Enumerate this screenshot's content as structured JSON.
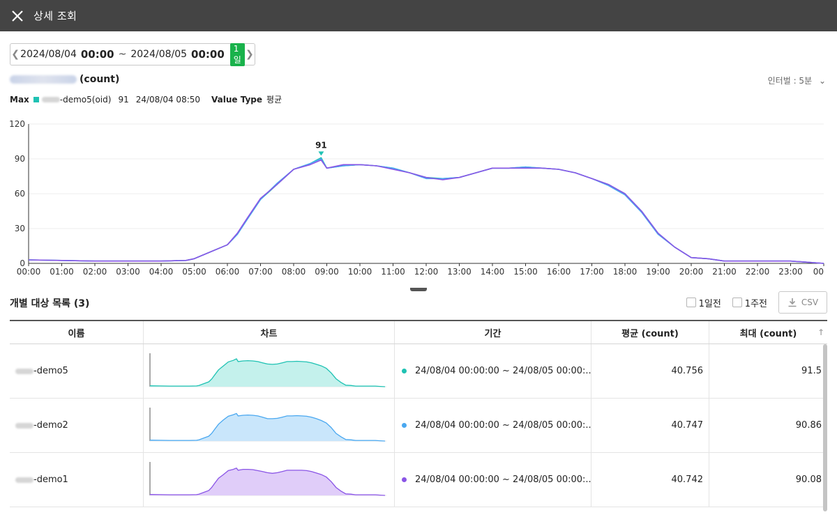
{
  "header": {
    "title": "상세 조회"
  },
  "date_range": {
    "start_date": "2024/08/04",
    "start_time": "00:00",
    "sep": "~",
    "end_date": "2024/08/05",
    "end_time": "00:00",
    "badge": "1일"
  },
  "metric": {
    "title_suffix": "(count)",
    "interval_label": "인터벌 : 5분"
  },
  "max_info": {
    "label": "Max",
    "name_suffix": "-demo5(oid)",
    "value": "91",
    "time": "24/08/04 08:50",
    "value_type_label": "Value Type",
    "value_type": "평균"
  },
  "colors": {
    "accent": "#1fc2b3",
    "green_badge": "#19b24b",
    "series_teal": "#1fc2b3",
    "series_blue": "#4aa8f0",
    "series_purple": "#8a55e6",
    "titlebar": "#444444"
  },
  "chart_data": {
    "type": "line",
    "x_ticks": [
      "00:00",
      "01:00",
      "02:00",
      "03:00",
      "04:00",
      "05:00",
      "06:00",
      "07:00",
      "08:00",
      "09:00",
      "10:00",
      "11:00",
      "12:00",
      "13:00",
      "14:00",
      "15:00",
      "16:00",
      "17:00",
      "18:00",
      "19:00",
      "20:00",
      "21:00",
      "22:00",
      "23:00",
      "00"
    ],
    "y_ticks": [
      "0",
      "30",
      "60",
      "90",
      "120"
    ],
    "ylim": [
      0,
      120
    ],
    "xlim_hours": [
      0,
      24
    ],
    "peak_label": "91",
    "peak": {
      "x": 8.83,
      "y": 91
    },
    "x": [
      0,
      1,
      2,
      3,
      4,
      4.75,
      5,
      5.5,
      6,
      6.3,
      6.6,
      7,
      7.5,
      8,
      8.5,
      8.83,
      9,
      9.5,
      10,
      10.5,
      11,
      11.5,
      12,
      12.5,
      13,
      13.5,
      14,
      14.5,
      15,
      15.5,
      16,
      16.5,
      17,
      17.5,
      18,
      18.5,
      19,
      19.5,
      20,
      20.5,
      21,
      22,
      23,
      23.5,
      24
    ],
    "series": [
      {
        "color": "#1fc2b3",
        "values": [
          3,
          2.5,
          2,
          2,
          2,
          2.5,
          4,
          10,
          16,
          25,
          38,
          55,
          68,
          81,
          86,
          91,
          82,
          84,
          85,
          84,
          82,
          78,
          74,
          73,
          74,
          78,
          82,
          82,
          83,
          82,
          81,
          78,
          73,
          68,
          60,
          45,
          26,
          14,
          5,
          4,
          2,
          2,
          2,
          1,
          0
        ]
      },
      {
        "color": "#4aa8f0",
        "values": [
          3,
          2.5,
          2,
          2,
          2,
          2.5,
          4,
          10,
          16,
          25,
          38,
          55,
          69,
          81,
          86,
          90,
          82,
          84,
          85,
          84,
          82,
          78,
          73,
          73,
          74,
          78,
          82,
          82,
          83,
          82,
          81,
          78,
          73,
          67,
          59,
          44,
          25,
          14,
          5,
          4,
          2,
          2,
          2,
          1,
          0
        ]
      },
      {
        "color": "#8a55e6",
        "values": [
          3,
          2.5,
          2,
          2,
          2,
          2.5,
          4,
          10,
          16,
          26,
          39,
          56,
          68,
          81,
          85,
          89,
          82,
          85,
          85,
          84,
          81,
          78,
          74,
          72,
          74,
          78,
          82,
          82,
          82,
          82,
          81,
          78,
          73,
          68,
          60,
          45,
          26,
          14,
          5,
          4,
          2,
          2,
          2,
          1,
          0
        ]
      }
    ]
  },
  "list": {
    "title": "개별 대상 목록 (3)",
    "check_1day": "1일전",
    "check_1week": "1주전",
    "csv_label": "CSV",
    "columns": {
      "name": "이름",
      "chart": "차트",
      "period": "기간",
      "avg": "평균 (count)",
      "max": "최대 (count)"
    },
    "rows": [
      {
        "name_suffix": "-demo5",
        "period": "24/08/04 00:00:00 ~ 24/08/05 00:00:...",
        "avg": "40.756",
        "max": "91.5",
        "color": "#1fc2b3",
        "fill": "#c4f1ec"
      },
      {
        "name_suffix": "-demo2",
        "period": "24/08/04 00:00:00 ~ 24/08/05 00:00:...",
        "avg": "40.747",
        "max": "90.86",
        "color": "#4aa8f0",
        "fill": "#c9e6fb"
      },
      {
        "name_suffix": "-demo1",
        "period": "24/08/04 00:00:00 ~ 24/08/05 00:00:...",
        "avg": "40.742",
        "max": "90.08",
        "color": "#8a55e6",
        "fill": "#e0cdf9"
      }
    ]
  }
}
